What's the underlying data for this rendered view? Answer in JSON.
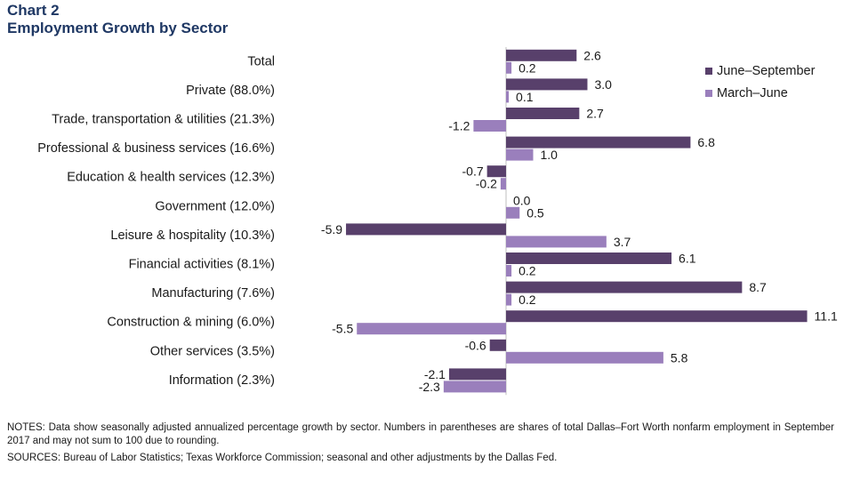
{
  "header": {
    "chart_number": "Chart 2",
    "title": "Employment Growth by Sector"
  },
  "footer": {
    "notes": "NOTES: Data show seasonally adjusted annualized percentage growth by sector. Numbers in parentheses are shares of total Dallas–Fort Worth nonfarm employment in September 2017 and may not sum to 100 due to rounding.",
    "sources": "SOURCES: Bureau of Labor Statistics; Texas Workforce Commission; seasonal and other adjustments by the Dallas Fed."
  },
  "colors": {
    "june_september": "#58406b",
    "march_june": "#9a7fbc",
    "title": "#1f3864",
    "axis": "#bfbfbf"
  },
  "chart_data": {
    "type": "bar",
    "orientation": "horizontal",
    "title": "Employment Growth by Sector",
    "categories": [
      "Total",
      "Private (88.0%)",
      "Trade, transportation & utilities (21.3%)",
      "Professional & business services (16.6%)",
      "Education & health services (12.3%)",
      "Government (12.0%)",
      "Leisure & hospitality (10.3%)",
      "Financial activities (8.1%)",
      "Manufacturing (7.6%)",
      "Construction & mining (6.0%)",
      "Other services (3.5%)",
      "Information (2.3%)"
    ],
    "series": [
      {
        "name": "June–September",
        "values": [
          2.6,
          3.0,
          2.7,
          6.8,
          -0.7,
          0.0,
          -5.9,
          6.1,
          8.7,
          11.1,
          -0.6,
          -2.1
        ],
        "labels": [
          "2.6",
          "3.0",
          "2.7",
          "6.8",
          "-0.7",
          "0.0",
          "-5.9",
          "6.1",
          "8.7",
          "11.1",
          "-0.6",
          "-2.1"
        ]
      },
      {
        "name": "March–June",
        "values": [
          0.2,
          0.1,
          -1.2,
          1.0,
          -0.2,
          0.5,
          3.7,
          0.2,
          0.2,
          -5.5,
          5.8,
          -2.3
        ],
        "labels": [
          "0.2",
          "0.1",
          "-1.2",
          "1.0",
          "-0.2",
          "0.5",
          "3.7",
          "0.2",
          "0.2",
          "-5.5",
          "5.8",
          "-2.3"
        ]
      }
    ],
    "xlim": [
      -12,
      12
    ],
    "legend_position": "top-right",
    "grid": false
  }
}
